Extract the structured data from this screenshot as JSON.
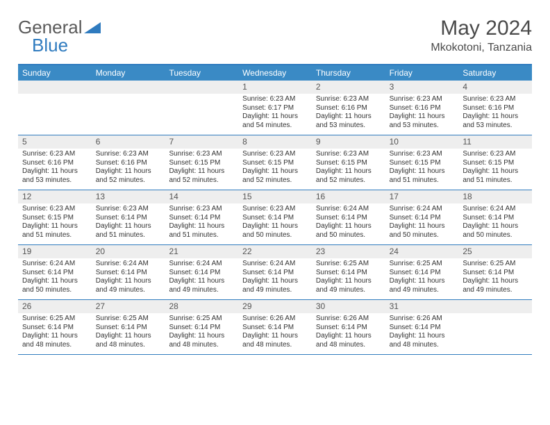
{
  "logo": {
    "text1": "General",
    "text2": "Blue"
  },
  "title": "May 2024",
  "location": "Mkokotoni, Tanzania",
  "colors": {
    "header_bg": "#3a8ac5",
    "border": "#2f7bbf",
    "daynum_bg": "#eeeeee",
    "text": "#333333",
    "title_text": "#4a4a4a"
  },
  "weekdays": [
    "Sunday",
    "Monday",
    "Tuesday",
    "Wednesday",
    "Thursday",
    "Friday",
    "Saturday"
  ],
  "weeks": [
    [
      null,
      null,
      null,
      {
        "n": "1",
        "sunrise": "6:23 AM",
        "sunset": "6:17 PM",
        "daylight": "11 hours and 54 minutes."
      },
      {
        "n": "2",
        "sunrise": "6:23 AM",
        "sunset": "6:16 PM",
        "daylight": "11 hours and 53 minutes."
      },
      {
        "n": "3",
        "sunrise": "6:23 AM",
        "sunset": "6:16 PM",
        "daylight": "11 hours and 53 minutes."
      },
      {
        "n": "4",
        "sunrise": "6:23 AM",
        "sunset": "6:16 PM",
        "daylight": "11 hours and 53 minutes."
      }
    ],
    [
      {
        "n": "5",
        "sunrise": "6:23 AM",
        "sunset": "6:16 PM",
        "daylight": "11 hours and 53 minutes."
      },
      {
        "n": "6",
        "sunrise": "6:23 AM",
        "sunset": "6:16 PM",
        "daylight": "11 hours and 52 minutes."
      },
      {
        "n": "7",
        "sunrise": "6:23 AM",
        "sunset": "6:15 PM",
        "daylight": "11 hours and 52 minutes."
      },
      {
        "n": "8",
        "sunrise": "6:23 AM",
        "sunset": "6:15 PM",
        "daylight": "11 hours and 52 minutes."
      },
      {
        "n": "9",
        "sunrise": "6:23 AM",
        "sunset": "6:15 PM",
        "daylight": "11 hours and 52 minutes."
      },
      {
        "n": "10",
        "sunrise": "6:23 AM",
        "sunset": "6:15 PM",
        "daylight": "11 hours and 51 minutes."
      },
      {
        "n": "11",
        "sunrise": "6:23 AM",
        "sunset": "6:15 PM",
        "daylight": "11 hours and 51 minutes."
      }
    ],
    [
      {
        "n": "12",
        "sunrise": "6:23 AM",
        "sunset": "6:15 PM",
        "daylight": "11 hours and 51 minutes."
      },
      {
        "n": "13",
        "sunrise": "6:23 AM",
        "sunset": "6:14 PM",
        "daylight": "11 hours and 51 minutes."
      },
      {
        "n": "14",
        "sunrise": "6:23 AM",
        "sunset": "6:14 PM",
        "daylight": "11 hours and 51 minutes."
      },
      {
        "n": "15",
        "sunrise": "6:23 AM",
        "sunset": "6:14 PM",
        "daylight": "11 hours and 50 minutes."
      },
      {
        "n": "16",
        "sunrise": "6:24 AM",
        "sunset": "6:14 PM",
        "daylight": "11 hours and 50 minutes."
      },
      {
        "n": "17",
        "sunrise": "6:24 AM",
        "sunset": "6:14 PM",
        "daylight": "11 hours and 50 minutes."
      },
      {
        "n": "18",
        "sunrise": "6:24 AM",
        "sunset": "6:14 PM",
        "daylight": "11 hours and 50 minutes."
      }
    ],
    [
      {
        "n": "19",
        "sunrise": "6:24 AM",
        "sunset": "6:14 PM",
        "daylight": "11 hours and 50 minutes."
      },
      {
        "n": "20",
        "sunrise": "6:24 AM",
        "sunset": "6:14 PM",
        "daylight": "11 hours and 49 minutes."
      },
      {
        "n": "21",
        "sunrise": "6:24 AM",
        "sunset": "6:14 PM",
        "daylight": "11 hours and 49 minutes."
      },
      {
        "n": "22",
        "sunrise": "6:24 AM",
        "sunset": "6:14 PM",
        "daylight": "11 hours and 49 minutes."
      },
      {
        "n": "23",
        "sunrise": "6:25 AM",
        "sunset": "6:14 PM",
        "daylight": "11 hours and 49 minutes."
      },
      {
        "n": "24",
        "sunrise": "6:25 AM",
        "sunset": "6:14 PM",
        "daylight": "11 hours and 49 minutes."
      },
      {
        "n": "25",
        "sunrise": "6:25 AM",
        "sunset": "6:14 PM",
        "daylight": "11 hours and 49 minutes."
      }
    ],
    [
      {
        "n": "26",
        "sunrise": "6:25 AM",
        "sunset": "6:14 PM",
        "daylight": "11 hours and 48 minutes."
      },
      {
        "n": "27",
        "sunrise": "6:25 AM",
        "sunset": "6:14 PM",
        "daylight": "11 hours and 48 minutes."
      },
      {
        "n": "28",
        "sunrise": "6:25 AM",
        "sunset": "6:14 PM",
        "daylight": "11 hours and 48 minutes."
      },
      {
        "n": "29",
        "sunrise": "6:26 AM",
        "sunset": "6:14 PM",
        "daylight": "11 hours and 48 minutes."
      },
      {
        "n": "30",
        "sunrise": "6:26 AM",
        "sunset": "6:14 PM",
        "daylight": "11 hours and 48 minutes."
      },
      {
        "n": "31",
        "sunrise": "6:26 AM",
        "sunset": "6:14 PM",
        "daylight": "11 hours and 48 minutes."
      },
      null
    ]
  ],
  "labels": {
    "sunrise": "Sunrise:",
    "sunset": "Sunset:",
    "daylight": "Daylight:"
  }
}
